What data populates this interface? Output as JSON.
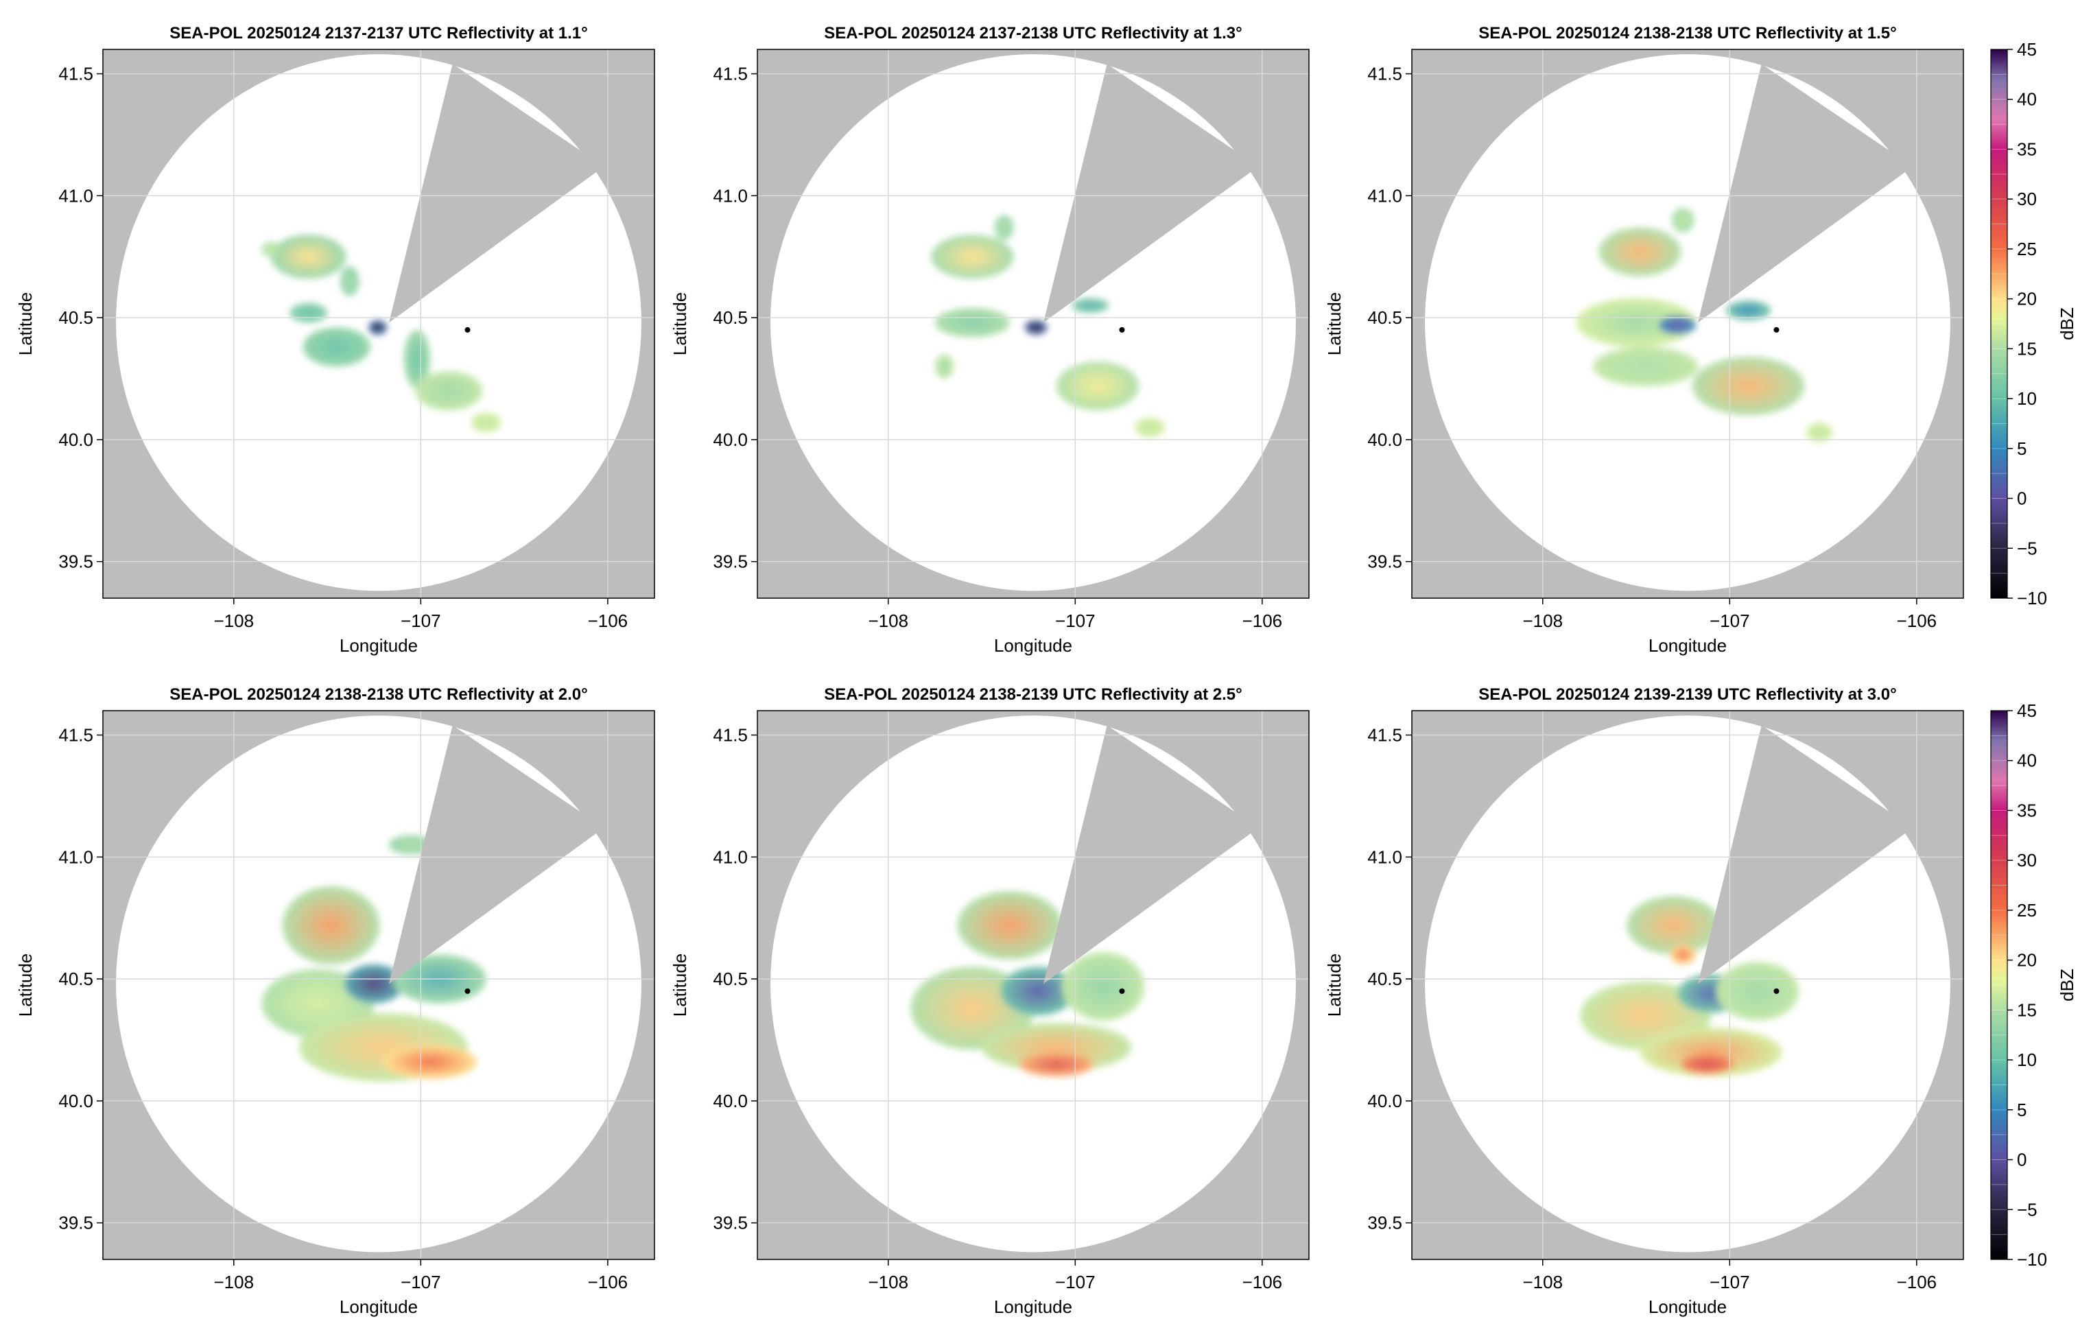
{
  "panel_titles": [
    "SEA-POL 20250124 2137-2137 UTC Reflectivity at 1.1°",
    "SEA-POL 20250124 2137-2138 UTC Reflectivity at 1.3°",
    "SEA-POL 20250124 2138-2138 UTC Reflectivity at 1.5°",
    "SEA-POL 20250124 2138-2138 UTC Reflectivity at 2.0°",
    "SEA-POL 20250124 2138-2139 UTC Reflectivity at 2.5°",
    "SEA-POL 20250124 2139-2139 UTC Reflectivity at 3.0°"
  ],
  "axes": {
    "xlabel": "Longitude",
    "ylabel": "Latitude",
    "xlim": [
      -108.7,
      -105.75
    ],
    "ylim": [
      39.35,
      41.6
    ],
    "xticks": [
      -108,
      -107,
      -106
    ],
    "xtick_labels": [
      "−108",
      "−107",
      "−106"
    ],
    "yticks": [
      39.5,
      40.0,
      40.5,
      41.0,
      41.5
    ],
    "ytick_labels": [
      "39.5",
      "40.0",
      "40.5",
      "41.0",
      "41.5"
    ],
    "grid": true
  },
  "colorbar": {
    "label": "dBZ",
    "range": [
      -10,
      45
    ],
    "ticks": [
      -10,
      -5,
      0,
      5,
      10,
      15,
      20,
      25,
      30,
      35,
      40,
      45
    ],
    "tick_labels": [
      "−10",
      "−5",
      "0",
      "5",
      "10",
      "15",
      "20",
      "25",
      "30",
      "35",
      "40",
      "45"
    ],
    "stops": [
      {
        "v": -10,
        "c": "#000004"
      },
      {
        "v": -5,
        "c": "#2a2440"
      },
      {
        "v": 0,
        "c": "#5e4fa2"
      },
      {
        "v": 5,
        "c": "#3288bd"
      },
      {
        "v": 10,
        "c": "#66c2a5"
      },
      {
        "v": 15,
        "c": "#abdda4"
      },
      {
        "v": 18,
        "c": "#e6f598"
      },
      {
        "v": 20,
        "c": "#fee08b"
      },
      {
        "v": 25,
        "c": "#f46d43"
      },
      {
        "v": 30,
        "c": "#d53e4f"
      },
      {
        "v": 35,
        "c": "#c51b7d"
      },
      {
        "v": 38,
        "c": "#de77ae"
      },
      {
        "v": 42,
        "c": "#8073ac"
      },
      {
        "v": 45,
        "c": "#2d004b"
      }
    ]
  },
  "colors": {
    "outside_range": "#bdbdbd",
    "blanked_sector": "#bdbdbd",
    "grid": "#d9d9d9",
    "marker": "#000000"
  },
  "chart_data": {
    "type": "heatmap",
    "radar_center": {
      "lon": -107.17,
      "lat": 40.48
    },
    "radar_range_extent": {
      "lon_min": -108.63,
      "lon_max": -105.82,
      "lat_min": 39.38,
      "lat_max": 41.58
    },
    "blanked_sectors": [
      {
        "from": [
          -107.17,
          40.48
        ],
        "to1": [
          -106.83,
          41.54
        ],
        "to2": [
          -106.02,
          41.12
        ]
      }
    ],
    "marker": {
      "lon": -106.75,
      "lat": 40.45
    },
    "panels": [
      {
        "elevation_deg": 1.1,
        "echoes": [
          {
            "lon": -107.6,
            "lat": 40.75,
            "rlon": 0.2,
            "rlat": 0.09,
            "dbz": 20,
            "edge_dbz": 13
          },
          {
            "lon": -107.8,
            "lat": 40.78,
            "rlon": 0.05,
            "rlat": 0.03,
            "dbz": 17,
            "edge_dbz": 14
          },
          {
            "lon": -107.38,
            "lat": 40.65,
            "rlon": 0.05,
            "rlat": 0.06,
            "dbz": 15,
            "edge_dbz": 12
          },
          {
            "lon": -107.6,
            "lat": 40.52,
            "rlon": 0.1,
            "rlat": 0.04,
            "dbz": 10,
            "edge_dbz": 12
          },
          {
            "lon": -107.45,
            "lat": 40.38,
            "rlon": 0.18,
            "rlat": 0.08,
            "dbz": 10,
            "edge_dbz": 13
          },
          {
            "lon": -107.23,
            "lat": 40.46,
            "rlon": 0.05,
            "rlat": 0.03,
            "dbz": -6,
            "edge_dbz": 3
          },
          {
            "lon": -107.02,
            "lat": 40.33,
            "rlon": 0.07,
            "rlat": 0.12,
            "dbz": 10,
            "edge_dbz": 14
          },
          {
            "lon": -106.85,
            "lat": 40.2,
            "rlon": 0.18,
            "rlat": 0.08,
            "dbz": 14,
            "edge_dbz": 16
          },
          {
            "lon": -106.65,
            "lat": 40.07,
            "rlon": 0.08,
            "rlat": 0.04,
            "dbz": 16,
            "edge_dbz": 17
          }
        ]
      },
      {
        "elevation_deg": 1.3,
        "echoes": [
          {
            "lon": -107.55,
            "lat": 40.75,
            "rlon": 0.22,
            "rlat": 0.09,
            "dbz": 20,
            "edge_dbz": 14
          },
          {
            "lon": -107.38,
            "lat": 40.87,
            "rlon": 0.05,
            "rlat": 0.05,
            "dbz": 15,
            "edge_dbz": 13
          },
          {
            "lon": -107.55,
            "lat": 40.48,
            "rlon": 0.2,
            "rlat": 0.06,
            "dbz": 12,
            "edge_dbz": 15
          },
          {
            "lon": -107.7,
            "lat": 40.3,
            "rlon": 0.05,
            "rlat": 0.05,
            "dbz": 14,
            "edge_dbz": 16
          },
          {
            "lon": -107.21,
            "lat": 40.46,
            "rlon": 0.06,
            "rlat": 0.03,
            "dbz": -6,
            "edge_dbz": 2
          },
          {
            "lon": -106.92,
            "lat": 40.55,
            "rlon": 0.1,
            "rlat": 0.03,
            "dbz": 8,
            "edge_dbz": 12
          },
          {
            "lon": -106.88,
            "lat": 40.22,
            "rlon": 0.22,
            "rlat": 0.1,
            "dbz": 19,
            "edge_dbz": 15
          },
          {
            "lon": -106.6,
            "lat": 40.05,
            "rlon": 0.08,
            "rlat": 0.04,
            "dbz": 16,
            "edge_dbz": 17
          }
        ]
      },
      {
        "elevation_deg": 1.5,
        "echoes": [
          {
            "lon": -107.48,
            "lat": 40.77,
            "rlon": 0.22,
            "rlat": 0.1,
            "dbz": 22,
            "edge_dbz": 15
          },
          {
            "lon": -107.25,
            "lat": 40.9,
            "rlon": 0.06,
            "rlat": 0.05,
            "dbz": 16,
            "edge_dbz": 14
          },
          {
            "lon": -107.5,
            "lat": 40.48,
            "rlon": 0.32,
            "rlat": 0.1,
            "dbz": 14,
            "edge_dbz": 17
          },
          {
            "lon": -107.45,
            "lat": 40.3,
            "rlon": 0.28,
            "rlat": 0.08,
            "dbz": 15,
            "edge_dbz": 16
          },
          {
            "lon": -107.28,
            "lat": 40.47,
            "rlon": 0.1,
            "rlat": 0.04,
            "dbz": 0,
            "edge_dbz": 6
          },
          {
            "lon": -106.9,
            "lat": 40.53,
            "rlon": 0.12,
            "rlat": 0.04,
            "dbz": 5,
            "edge_dbz": 11
          },
          {
            "lon": -106.9,
            "lat": 40.22,
            "rlon": 0.3,
            "rlat": 0.12,
            "dbz": 22,
            "edge_dbz": 15
          },
          {
            "lon": -106.52,
            "lat": 40.03,
            "rlon": 0.07,
            "rlat": 0.04,
            "dbz": 16,
            "edge_dbz": 17
          }
        ]
      },
      {
        "elevation_deg": 2.0,
        "echoes": [
          {
            "lon": -107.48,
            "lat": 40.72,
            "rlon": 0.26,
            "rlat": 0.16,
            "dbz": 23,
            "edge_dbz": 15
          },
          {
            "lon": -107.55,
            "lat": 40.4,
            "rlon": 0.3,
            "rlat": 0.14,
            "dbz": 17,
            "edge_dbz": 15
          },
          {
            "lon": -107.2,
            "lat": 40.22,
            "rlon": 0.45,
            "rlat": 0.14,
            "dbz": 21,
            "edge_dbz": 16
          },
          {
            "lon": -106.95,
            "lat": 40.16,
            "rlon": 0.25,
            "rlat": 0.07,
            "dbz": 25,
            "edge_dbz": 20
          },
          {
            "lon": -107.25,
            "lat": 40.48,
            "rlon": 0.16,
            "rlat": 0.08,
            "dbz": -2,
            "edge_dbz": 8
          },
          {
            "lon": -106.9,
            "lat": 40.5,
            "rlon": 0.25,
            "rlat": 0.1,
            "dbz": 8,
            "edge_dbz": 14
          },
          {
            "lon": -107.05,
            "lat": 41.05,
            "rlon": 0.12,
            "rlat": 0.04,
            "dbz": 15,
            "edge_dbz": 13
          }
        ]
      },
      {
        "elevation_deg": 2.5,
        "echoes": [
          {
            "lon": -107.35,
            "lat": 40.72,
            "rlon": 0.28,
            "rlat": 0.14,
            "dbz": 23,
            "edge_dbz": 15
          },
          {
            "lon": -107.55,
            "lat": 40.38,
            "rlon": 0.33,
            "rlat": 0.17,
            "dbz": 21,
            "edge_dbz": 15
          },
          {
            "lon": -107.1,
            "lat": 40.22,
            "rlon": 0.4,
            "rlat": 0.1,
            "dbz": 22,
            "edge_dbz": 16
          },
          {
            "lon": -107.1,
            "lat": 40.15,
            "rlon": 0.2,
            "rlat": 0.05,
            "dbz": 28,
            "edge_dbz": 22
          },
          {
            "lon": -107.2,
            "lat": 40.45,
            "rlon": 0.2,
            "rlat": 0.1,
            "dbz": 1,
            "edge_dbz": 10
          },
          {
            "lon": -106.85,
            "lat": 40.47,
            "rlon": 0.22,
            "rlat": 0.14,
            "dbz": 13,
            "edge_dbz": 16
          }
        ]
      },
      {
        "elevation_deg": 3.0,
        "echoes": [
          {
            "lon": -107.3,
            "lat": 40.72,
            "rlon": 0.25,
            "rlat": 0.12,
            "dbz": 22,
            "edge_dbz": 15
          },
          {
            "lon": -107.45,
            "lat": 40.35,
            "rlon": 0.35,
            "rlat": 0.14,
            "dbz": 21,
            "edge_dbz": 16
          },
          {
            "lon": -107.1,
            "lat": 40.2,
            "rlon": 0.38,
            "rlat": 0.1,
            "dbz": 23,
            "edge_dbz": 17
          },
          {
            "lon": -107.12,
            "lat": 40.15,
            "rlon": 0.14,
            "rlat": 0.04,
            "dbz": 29,
            "edge_dbz": 24
          },
          {
            "lon": -107.1,
            "lat": 40.44,
            "rlon": 0.18,
            "rlat": 0.08,
            "dbz": 2,
            "edge_dbz": 11
          },
          {
            "lon": -106.85,
            "lat": 40.45,
            "rlon": 0.22,
            "rlat": 0.12,
            "dbz": 14,
            "edge_dbz": 16
          },
          {
            "lon": -107.25,
            "lat": 40.6,
            "rlon": 0.07,
            "rlat": 0.04,
            "dbz": 25,
            "edge_dbz": 20
          }
        ]
      }
    ]
  }
}
